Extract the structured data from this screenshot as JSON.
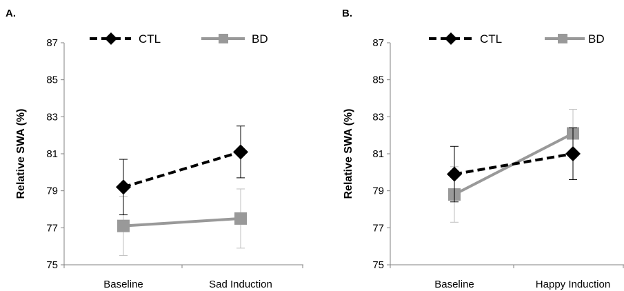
{
  "colors": {
    "CTL": "#000000",
    "BD": "#999999",
    "BD_error": "#bfbfbf",
    "axis": "#808080"
  },
  "chart_data": [
    {
      "type": "line",
      "panel_label": "A.",
      "categories": [
        "Baseline",
        "Sad Induction"
      ],
      "ylabel": "Relative SWA (%)",
      "ylim": [
        75,
        87
      ],
      "yticks": [
        75,
        77,
        79,
        81,
        83,
        85,
        87
      ],
      "legend_position": "top",
      "grid": false,
      "series": [
        {
          "name": "CTL",
          "values": [
            79.2,
            81.1
          ],
          "error": [
            1.5,
            1.4
          ],
          "line_style": "dashed",
          "marker": "diamond"
        },
        {
          "name": "BD",
          "values": [
            77.1,
            77.5
          ],
          "error": [
            1.6,
            1.6
          ],
          "line_style": "solid",
          "marker": "square"
        }
      ]
    },
    {
      "type": "line",
      "panel_label": "B.",
      "categories": [
        "Baseline",
        "Happy Induction"
      ],
      "ylabel": "Relative SWA (%)",
      "ylim": [
        75,
        87
      ],
      "yticks": [
        75,
        77,
        79,
        81,
        83,
        85,
        87
      ],
      "legend_position": "top",
      "grid": false,
      "series": [
        {
          "name": "CTL",
          "values": [
            79.9,
            81.0
          ],
          "error": [
            1.5,
            1.4
          ],
          "line_style": "dashed",
          "marker": "diamond"
        },
        {
          "name": "BD",
          "values": [
            78.8,
            82.1
          ],
          "error": [
            1.5,
            1.3
          ],
          "line_style": "solid",
          "marker": "square"
        }
      ]
    }
  ]
}
